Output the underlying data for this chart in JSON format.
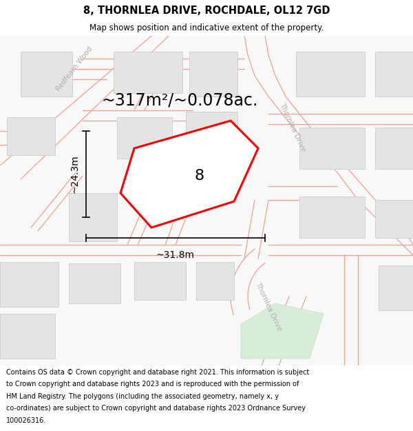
{
  "title": "8, THORNLEA DRIVE, ROCHDALE, OL12 7GD",
  "subtitle": "Map shows position and indicative extent of the property.",
  "area_label": "~317m²/~0.078ac.",
  "property_number": "8",
  "dim_width": "~31.8m",
  "dim_height": "~24.3m",
  "footer_lines": [
    "Contains OS data © Crown copyright and database right 2021. This information is subject",
    "to Crown copyright and database rights 2023 and is reproduced with the permission of",
    "HM Land Registry. The polygons (including the associated geometry, namely x, y",
    "co-ordinates) are subject to Crown copyright and database rights 2023 Ordnance Survey",
    "100026316."
  ],
  "bg_color": "#f7f7f7",
  "highlight_color": "#ff0000",
  "road_line_color": "#f0a090",
  "building_color": "#e4e4e4",
  "building_edge": "#cccccc",
  "road_label_color": "#aaaaaa",
  "title_fontsize": 10.5,
  "subtitle_fontsize": 8.5,
  "footer_fontsize": 7.0,
  "area_fontsize": 17,
  "dim_fontsize": 10,
  "prop_num_fontsize": 16,
  "road_lw": 0.9,
  "prop_lw": 2.2
}
